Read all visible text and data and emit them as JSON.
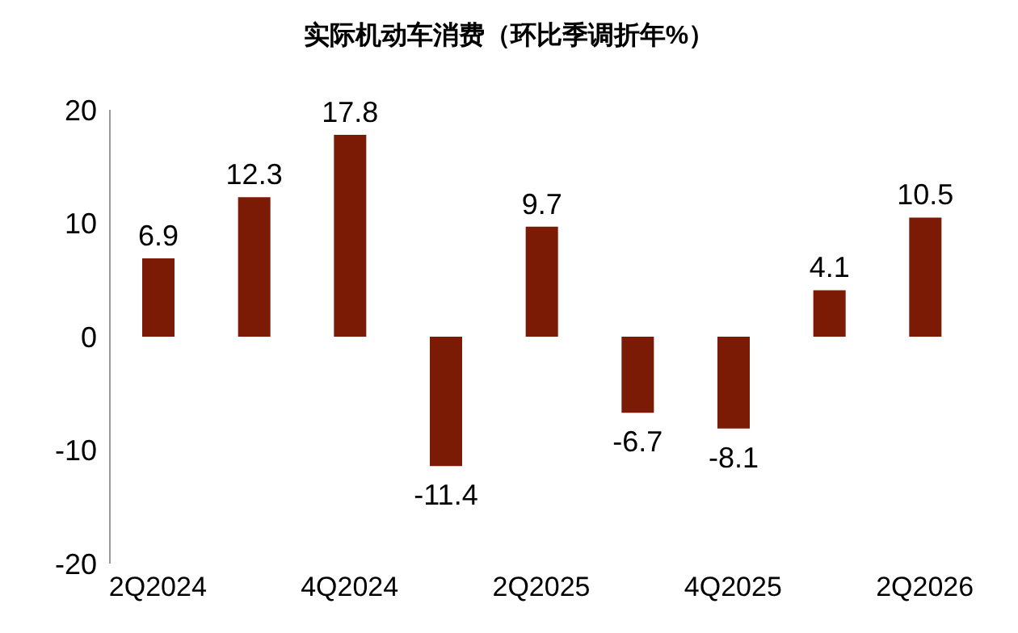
{
  "chart_data": {
    "type": "bar",
    "title": "实际机动车消费（环比季调折年%）",
    "categories": [
      "2Q2024",
      null,
      "4Q2024",
      null,
      "2Q2025",
      null,
      "4Q2025",
      null,
      "2Q2026"
    ],
    "values": [
      6.9,
      12.3,
      17.8,
      -11.4,
      9.7,
      -6.7,
      -8.1,
      4.1,
      10.5
    ],
    "color": "#7b1a05",
    "ylim": [
      -20,
      20
    ],
    "yticks": [
      -20,
      -10,
      0,
      10,
      20
    ],
    "grid": false,
    "data_labels": true
  }
}
